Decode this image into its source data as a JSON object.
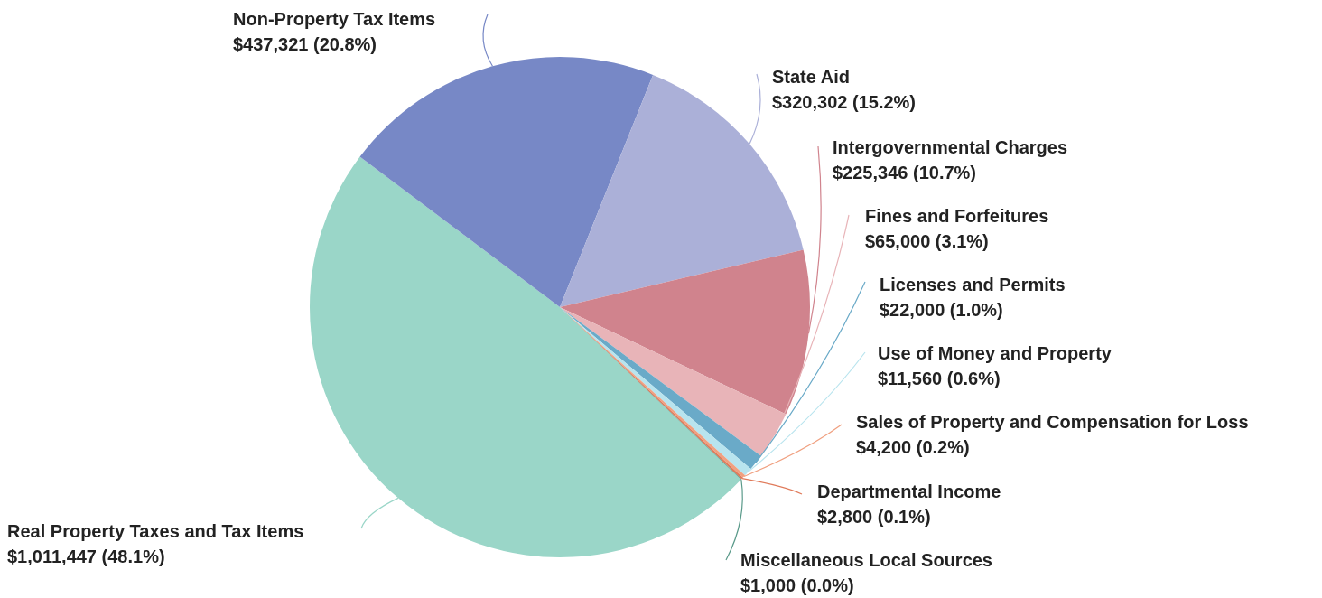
{
  "chart_data": {
    "type": "pie",
    "categories": [
      "Real Property Taxes and Tax Items",
      "Non-Property Tax Items",
      "State Aid",
      "Intergovernmental Charges",
      "Fines and Forfeitures",
      "Licenses and Permits",
      "Use of Money and Property",
      "Sales of Property and Compensation for Loss",
      "Departmental Income",
      "Miscellaneous Local Sources"
    ],
    "values": [
      1011447,
      437321,
      320302,
      225346,
      65000,
      22000,
      11560,
      4200,
      2800,
      1000
    ],
    "value_labels": [
      "$1,011,447 (48.1%)",
      "$437,321 (20.8%)",
      "$320,302 (15.2%)",
      "$225,346 (10.7%)",
      "$65,000 (3.1%)",
      "$22,000 (1.0%)",
      "$11,560 (0.6%)",
      "$4,200 (0.2%)",
      "$2,800 (0.1%)",
      "$1,000 (0.0%)"
    ],
    "colors": [
      "#9ad6c8",
      "#7788c6",
      "#abb0d8",
      "#d0838d",
      "#e8b4b8",
      "#6aaac8",
      "#b8e4ee",
      "#f0a080",
      "#e07a5a",
      "#5a9a8a"
    ]
  }
}
